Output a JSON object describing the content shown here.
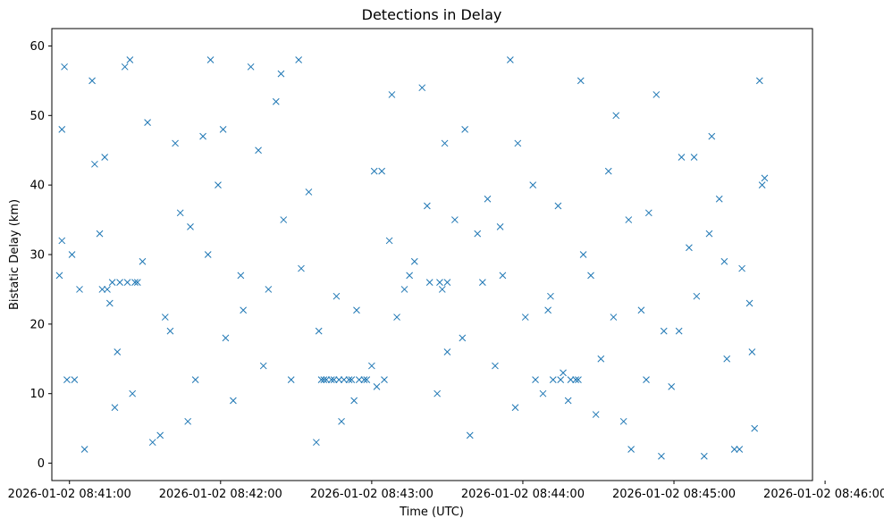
{
  "chart_data": {
    "type": "scatter",
    "title": "Detections in Delay",
    "xlabel": "Time (UTC)",
    "ylabel": "Bistatic Delay (km)",
    "marker": "x",
    "marker_color": "#1f77b4",
    "grid": false,
    "legend": "none",
    "xlim": [
      "2026-01-02 08:40:53",
      "2026-01-02 08:45:55"
    ],
    "ylim": [
      -2.5,
      62.5
    ],
    "xticks": [
      {
        "time": "2026-01-02 08:41:00",
        "label": "2026-01-02 08:41:00"
      },
      {
        "time": "2026-01-02 08:42:00",
        "label": "2026-01-02 08:42:00"
      },
      {
        "time": "2026-01-02 08:43:00",
        "label": "2026-01-02 08:43:00"
      },
      {
        "time": "2026-01-02 08:44:00",
        "label": "2026-01-02 08:44:00"
      },
      {
        "time": "2026-01-02 08:45:00",
        "label": "2026-01-02 08:45:00"
      },
      {
        "time": "2026-01-02 08:46:00",
        "label": "2026-01-02 08:46:00"
      }
    ],
    "yticks": [
      0,
      10,
      20,
      30,
      40,
      50,
      60
    ],
    "series": [
      {
        "x": [
          "2026-01-02 08:40:56",
          "2026-01-02 08:40:57",
          "2026-01-02 08:40:59",
          "2026-01-02 08:41:01",
          "2026-01-02 08:41:04",
          "2026-01-02 08:41:09",
          "2026-01-02 08:41:14",
          "2026-01-02 08:41:18",
          "2026-01-02 08:41:22",
          "2026-01-02 08:41:27",
          "2026-01-02 08:41:33",
          "2026-01-02 08:41:38",
          "2026-01-02 08:41:44",
          "2026-01-02 08:41:50",
          "2026-01-02 08:41:56",
          "2026-01-02 08:42:02",
          "2026-01-02 08:42:08",
          "2026-01-02 08:42:15",
          "2026-01-02 08:42:22",
          "2026-01-02 08:42:28",
          "2026-01-02 08:42:35",
          "2026-01-02 08:42:41",
          "2026-01-02 08:42:48",
          "2026-01-02 08:42:54",
          "2026-01-02 08:43:00",
          "2026-01-02 08:43:07",
          "2026-01-02 08:43:13",
          "2026-01-02 08:43:20",
          "2026-01-02 08:43:26",
          "2026-01-02 08:43:33",
          "2026-01-02 08:43:39",
          "2026-01-02 08:43:46",
          "2026-01-02 08:43:52",
          "2026-01-02 08:43:58",
          "2026-01-02 08:44:05",
          "2026-01-02 08:44:11",
          "2026-01-02 08:44:18",
          "2026-01-02 08:44:24",
          "2026-01-02 08:44:31",
          "2026-01-02 08:44:37",
          "2026-01-02 08:44:43",
          "2026-01-02 08:44:50",
          "2026-01-02 08:44:56",
          "2026-01-02 08:45:03",
          "2026-01-02 08:45:09",
          "2026-01-02 08:45:15",
          "2026-01-02 08:45:21",
          "2026-01-02 08:45:27",
          "2026-01-02 08:45:32",
          "2026-01-02 08:45:36",
          "2026-01-02 08:40:58",
          "2026-01-02 08:41:06",
          "2026-01-02 08:41:12",
          "2026-01-02 08:41:19",
          "2026-01-02 08:41:25",
          "2026-01-02 08:41:31",
          "2026-01-02 08:41:40",
          "2026-01-02 08:41:47",
          "2026-01-02 08:41:53",
          "2026-01-02 08:41:59",
          "2026-01-02 08:42:05",
          "2026-01-02 08:42:12",
          "2026-01-02 08:42:19",
          "2026-01-02 08:42:25",
          "2026-01-02 08:42:31",
          "2026-01-02 08:42:38",
          "2026-01-02 08:42:45",
          "2026-01-02 08:42:51",
          "2026-01-02 08:42:57",
          "2026-01-02 08:43:04",
          "2026-01-02 08:43:10",
          "2026-01-02 08:43:17",
          "2026-01-02 08:43:23",
          "2026-01-02 08:43:29",
          "2026-01-02 08:43:36",
          "2026-01-02 08:43:42",
          "2026-01-02 08:43:49",
          "2026-01-02 08:43:55",
          "2026-01-02 08:44:01",
          "2026-01-02 08:44:08",
          "2026-01-02 08:44:14",
          "2026-01-02 08:44:21",
          "2026-01-02 08:44:27",
          "2026-01-02 08:44:34",
          "2026-01-02 08:44:40",
          "2026-01-02 08:44:47",
          "2026-01-02 08:44:53",
          "2026-01-02 08:44:59",
          "2026-01-02 08:45:06",
          "2026-01-02 08:45:12",
          "2026-01-02 08:45:18",
          "2026-01-02 08:45:24",
          "2026-01-02 08:45:30",
          "2026-01-02 08:45:34",
          "2026-01-02 08:40:57",
          "2026-01-02 08:41:02",
          "2026-01-02 08:41:10",
          "2026-01-02 08:41:16",
          "2026-01-02 08:41:24",
          "2026-01-02 08:41:29",
          "2026-01-02 08:41:36",
          "2026-01-02 08:41:42",
          "2026-01-02 08:41:48",
          "2026-01-02 08:41:55",
          "2026-01-02 08:42:01",
          "2026-01-02 08:42:09",
          "2026-01-02 08:42:17",
          "2026-01-02 08:42:24",
          "2026-01-02 08:42:32",
          "2026-01-02 08:42:39",
          "2026-01-02 08:42:46",
          "2026-01-02 08:42:53",
          "2026-01-02 08:43:01",
          "2026-01-02 08:43:08",
          "2026-01-02 08:43:15",
          "2026-01-02 08:43:22",
          "2026-01-02 08:43:30",
          "2026-01-02 08:43:37",
          "2026-01-02 08:43:44",
          "2026-01-02 08:43:51",
          "2026-01-02 08:43:57",
          "2026-01-02 08:44:04",
          "2026-01-02 08:44:10",
          "2026-01-02 08:44:16",
          "2026-01-02 08:44:23",
          "2026-01-02 08:44:29",
          "2026-01-02 08:44:36",
          "2026-01-02 08:44:42",
          "2026-01-02 08:44:49",
          "2026-01-02 08:44:55",
          "2026-01-02 08:45:02",
          "2026-01-02 08:45:08",
          "2026-01-02 08:45:14",
          "2026-01-02 08:45:20",
          "2026-01-02 08:45:26",
          "2026-01-02 08:45:31",
          "2026-01-02 08:45:35",
          "2026-01-02 08:41:13",
          "2026-01-02 08:41:15",
          "2026-01-02 08:41:17",
          "2026-01-02 08:41:20",
          "2026-01-02 08:41:23",
          "2026-01-02 08:41:26",
          "2026-01-02 08:42:40",
          "2026-01-02 08:42:42",
          "2026-01-02 08:42:44",
          "2026-01-02 08:42:47",
          "2026-01-02 08:42:49",
          "2026-01-02 08:42:52",
          "2026-01-02 08:42:55",
          "2026-01-02 08:42:58",
          "2026-01-02 08:43:02",
          "2026-01-02 08:43:05",
          "2026-01-02 08:43:27",
          "2026-01-02 08:43:28",
          "2026-01-02 08:43:30",
          "2026-01-02 08:44:12",
          "2026-01-02 08:44:15",
          "2026-01-02 08:44:19",
          "2026-01-02 08:44:22"
        ],
        "y": [
          27,
          48,
          12,
          30,
          25,
          55,
          44,
          8,
          57,
          26,
          3,
          21,
          36,
          12,
          58,
          18,
          27,
          45,
          52,
          12,
          39,
          12,
          6,
          22,
          14,
          32,
          25,
          54,
          10,
          35,
          4,
          38,
          27,
          46,
          12,
          24,
          9,
          30,
          15,
          50,
          2,
          36,
          19,
          44,
          24,
          47,
          15,
          28,
          5,
          41,
          57,
          2,
          33,
          16,
          10,
          49,
          19,
          6,
          47,
          40,
          9,
          57,
          25,
          35,
          58,
          3,
          12,
          12,
          12,
          42,
          21,
          29,
          26,
          46,
          18,
          33,
          14,
          58,
          21,
          10,
          37,
          12,
          27,
          42,
          6,
          22,
          53,
          11,
          31,
          1,
          38,
          2,
          23,
          55,
          32,
          12,
          43,
          23,
          58,
          29,
          4,
          46,
          34,
          30,
          48,
          22,
          14,
          56,
          28,
          19,
          24,
          9,
          42,
          53,
          27,
          37,
          16,
          48,
          26,
          34,
          8,
          40,
          22,
          13,
          55,
          7,
          21,
          35,
          12,
          1,
          19,
          44,
          33,
          29,
          2,
          16,
          40,
          25,
          25,
          26,
          26,
          26,
          26,
          12,
          12,
          12,
          12,
          12,
          12,
          12,
          12,
          11,
          12,
          26,
          25,
          26,
          12,
          12,
          12,
          12
        ]
      }
    ]
  }
}
